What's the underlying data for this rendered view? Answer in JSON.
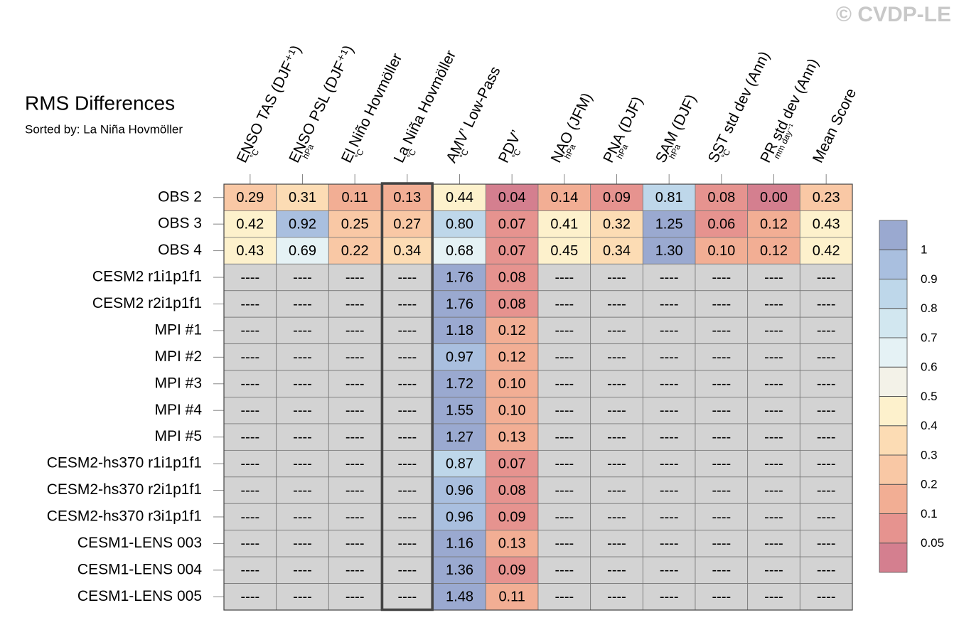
{
  "chart_data": {
    "type": "heatmap",
    "title": "RMS Differences",
    "subtitle": "Sorted by: La Niña Hovmöller",
    "watermark": "© CVDP-LE",
    "columns": [
      {
        "label": "ENSO TAS (DJF⁺¹)",
        "unit": "°C"
      },
      {
        "label": "ENSO PSL (DJF⁺¹)",
        "unit": "hPa"
      },
      {
        "label": "El Niño Hovmöller",
        "unit": "°C"
      },
      {
        "label": "La Niña Hovmöller",
        "unit": "°C"
      },
      {
        "label": "AMV’ Low-Pass",
        "unit": "°C"
      },
      {
        "label": "PDV’",
        "unit": "°C"
      },
      {
        "label": "NAO (JFM)",
        "unit": "hPa"
      },
      {
        "label": "PNA (DJF)",
        "unit": "hPa"
      },
      {
        "label": "SAM (DJF)",
        "unit": "hPa"
      },
      {
        "label": "SST std dev (Ann)",
        "unit": "°C"
      },
      {
        "label": "PR std dev (Ann)",
        "unit": "mm day⁻¹"
      },
      {
        "label": "Mean Score"
      }
    ],
    "rows": [
      "OBS 2",
      "OBS 3",
      "OBS 4",
      "CESM2 r1i1p1f1",
      "CESM2 r2i1p1f1",
      "MPI #1",
      "MPI #2",
      "MPI #3",
      "MPI #4",
      "MPI #5",
      "CESM2-hs370 r1i1p1f1",
      "CESM2-hs370 r2i1p1f1",
      "CESM2-hs370 r3i1p1f1",
      "CESM1-LENS 003",
      "CESM1-LENS 004",
      "CESM1-LENS 005"
    ],
    "values": [
      [
        0.29,
        0.31,
        0.11,
        0.13,
        0.44,
        0.04,
        0.14,
        0.09,
        0.81,
        0.08,
        0,
        0.23
      ],
      [
        0.42,
        0.92,
        0.25,
        0.27,
        0.8,
        0.07,
        0.41,
        0.32,
        1.25,
        0.06,
        0.12,
        0.43
      ],
      [
        0.43,
        0.69,
        0.22,
        0.34,
        0.68,
        0.07,
        0.45,
        0.34,
        1.3,
        0.1,
        0.12,
        0.42
      ],
      [
        null,
        null,
        null,
        null,
        1.76,
        0.08,
        null,
        null,
        null,
        null,
        null,
        null
      ],
      [
        null,
        null,
        null,
        null,
        1.76,
        0.08,
        null,
        null,
        null,
        null,
        null,
        null
      ],
      [
        null,
        null,
        null,
        null,
        1.18,
        0.12,
        null,
        null,
        null,
        null,
        null,
        null
      ],
      [
        null,
        null,
        null,
        null,
        0.97,
        0.12,
        null,
        null,
        null,
        null,
        null,
        null
      ],
      [
        null,
        null,
        null,
        null,
        1.72,
        0.1,
        null,
        null,
        null,
        null,
        null,
        null
      ],
      [
        null,
        null,
        null,
        null,
        1.55,
        0.1,
        null,
        null,
        null,
        null,
        null,
        null
      ],
      [
        null,
        null,
        null,
        null,
        1.27,
        0.13,
        null,
        null,
        null,
        null,
        null,
        null
      ],
      [
        null,
        null,
        null,
        null,
        0.87,
        0.07,
        null,
        null,
        null,
        null,
        null,
        null
      ],
      [
        null,
        null,
        null,
        null,
        0.96,
        0.08,
        null,
        null,
        null,
        null,
        null,
        null
      ],
      [
        null,
        null,
        null,
        null,
        0.96,
        0.09,
        null,
        null,
        null,
        null,
        null,
        null
      ],
      [
        null,
        null,
        null,
        null,
        1.16,
        0.13,
        null,
        null,
        null,
        null,
        null,
        null
      ],
      [
        null,
        null,
        null,
        null,
        1.36,
        0.09,
        null,
        null,
        null,
        null,
        null,
        null
      ],
      [
        null,
        null,
        null,
        null,
        1.48,
        0.11,
        null,
        null,
        null,
        null,
        null,
        null
      ]
    ],
    "value_labels": [
      [
        "0.29",
        "0.31",
        "0.11",
        "0.13",
        "0.44",
        "0.04",
        "0.14",
        "0.09",
        "0.81",
        "0.08",
        "0.00",
        "0.23"
      ],
      [
        "0.42",
        "0.92",
        "0.25",
        "0.27",
        "0.80",
        "0.07",
        "0.41",
        "0.32",
        "1.25",
        "0.06",
        "0.12",
        "0.43"
      ],
      [
        "0.43",
        "0.69",
        "0.22",
        "0.34",
        "0.68",
        "0.07",
        "0.45",
        "0.34",
        "1.30",
        "0.10",
        "0.12",
        "0.42"
      ],
      [
        "----",
        "----",
        "----",
        "----",
        "1.76",
        "0.08",
        "----",
        "----",
        "----",
        "----",
        "----",
        "----"
      ],
      [
        "----",
        "----",
        "----",
        "----",
        "1.76",
        "0.08",
        "----",
        "----",
        "----",
        "----",
        "----",
        "----"
      ],
      [
        "----",
        "----",
        "----",
        "----",
        "1.18",
        "0.12",
        "----",
        "----",
        "----",
        "----",
        "----",
        "----"
      ],
      [
        "----",
        "----",
        "----",
        "----",
        "0.97",
        "0.12",
        "----",
        "----",
        "----",
        "----",
        "----",
        "----"
      ],
      [
        "----",
        "----",
        "----",
        "----",
        "1.72",
        "0.10",
        "----",
        "----",
        "----",
        "----",
        "----",
        "----"
      ],
      [
        "----",
        "----",
        "----",
        "----",
        "1.55",
        "0.10",
        "----",
        "----",
        "----",
        "----",
        "----",
        "----"
      ],
      [
        "----",
        "----",
        "----",
        "----",
        "1.27",
        "0.13",
        "----",
        "----",
        "----",
        "----",
        "----",
        "----"
      ],
      [
        "----",
        "----",
        "----",
        "----",
        "0.87",
        "0.07",
        "----",
        "----",
        "----",
        "----",
        "----",
        "----"
      ],
      [
        "----",
        "----",
        "----",
        "----",
        "0.96",
        "0.08",
        "----",
        "----",
        "----",
        "----",
        "----",
        "----"
      ],
      [
        "----",
        "----",
        "----",
        "----",
        "0.96",
        "0.09",
        "----",
        "----",
        "----",
        "----",
        "----",
        "----"
      ],
      [
        "----",
        "----",
        "----",
        "----",
        "1.16",
        "0.13",
        "----",
        "----",
        "----",
        "----",
        "----",
        "----"
      ],
      [
        "----",
        "----",
        "----",
        "----",
        "1.36",
        "0.09",
        "----",
        "----",
        "----",
        "----",
        "----",
        "----"
      ],
      [
        "----",
        "----",
        "----",
        "----",
        "1.48",
        "0.11",
        "----",
        "----",
        "----",
        "----",
        "----",
        "----"
      ]
    ],
    "highlight_column": 3,
    "missing_color": "#d3d3d3",
    "levels": [
      0.05,
      0.1,
      0.2,
      0.3,
      0.4,
      0.5,
      0.6,
      0.7,
      0.8,
      0.9,
      1
    ],
    "colors": [
      "#d47f8f",
      "#e6938f",
      "#f2ae94",
      "#f9c8a5",
      "#fcdcb4",
      "#fdf1cc",
      "#f3f2e8",
      "#e5f2f5",
      "#d2e7f0",
      "#bed7ea",
      "#a9bfdf",
      "#9aa9d0"
    ]
  }
}
